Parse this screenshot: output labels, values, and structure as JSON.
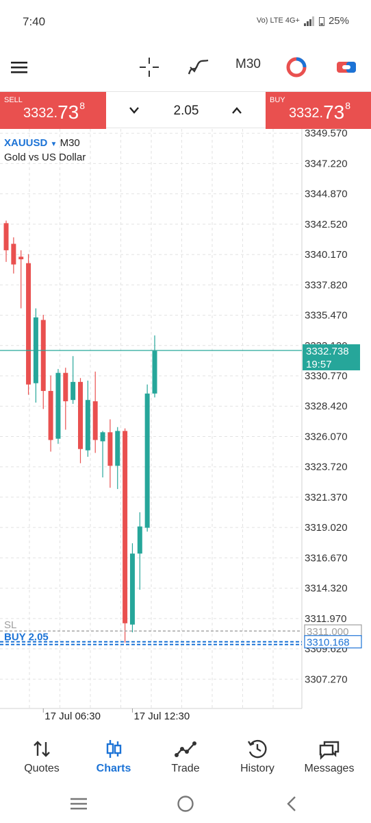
{
  "status_bar": {
    "time": "7:40",
    "network": "Vo) LTE 4G+",
    "battery": "25%"
  },
  "toolbar": {
    "menu_icon": "hamburger-icon",
    "crosshair_icon": "crosshair-icon",
    "indicators_icon": "indicators-icon",
    "timeframe": "M30",
    "objects_icon": "objects-icon",
    "trade_icon": "one-click-trading-icon"
  },
  "trade_bar": {
    "sell": {
      "label": "SELL",
      "price_small": "3332.",
      "price_big": "73",
      "price_sup": "8"
    },
    "buy": {
      "label": "BUY",
      "price_small": "3332.",
      "price_big": "73",
      "price_sup": "8"
    },
    "volume": "2.05",
    "colors": {
      "sell": "#e9504f",
      "buy": "#e9504f"
    }
  },
  "symbol": {
    "name": "XAUUSD",
    "timeframe": "M30",
    "description": "Gold vs US Dollar"
  },
  "chart_data": {
    "type": "candlestick",
    "symbol": "XAUUSD",
    "timeframe": "M30",
    "y_ticks": [
      "3349.570",
      "3347.220",
      "3344.870",
      "3342.520",
      "3340.170",
      "3337.820",
      "3335.470",
      "3333.120",
      "3330.770",
      "3328.420",
      "3326.070",
      "3323.720",
      "3321.370",
      "3319.020",
      "3316.670",
      "3314.320",
      "3311.970",
      "3309.620",
      "3307.270"
    ],
    "ylim": [
      3305.0,
      3349.9
    ],
    "x_labels": [
      {
        "label": "17 Jul 06:30",
        "index": 5
      },
      {
        "label": "17 Jul 12:30",
        "index": 17
      }
    ],
    "candles": [
      {
        "o": 3342.6,
        "h": 3342.8,
        "l": 3339.6,
        "c": 3340.5
      },
      {
        "o": 3341.0,
        "h": 3341.5,
        "l": 3338.7,
        "c": 3339.4
      },
      {
        "o": 3340.0,
        "h": 3340.5,
        "l": 3336.0,
        "c": 3339.8
      },
      {
        "o": 3339.5,
        "h": 3340.2,
        "l": 3329.3,
        "c": 3330.1
      },
      {
        "o": 3330.2,
        "h": 3336.0,
        "l": 3328.7,
        "c": 3335.3
      },
      {
        "o": 3335.1,
        "h": 3335.5,
        "l": 3328.2,
        "c": 3329.6
      },
      {
        "o": 3329.6,
        "h": 3330.8,
        "l": 3324.9,
        "c": 3325.8
      },
      {
        "o": 3325.9,
        "h": 3331.3,
        "l": 3325.5,
        "c": 3331.0
      },
      {
        "o": 3331.0,
        "h": 3331.4,
        "l": 3326.6,
        "c": 3328.8
      },
      {
        "o": 3328.9,
        "h": 3332.3,
        "l": 3328.6,
        "c": 3330.3
      },
      {
        "o": 3330.3,
        "h": 3330.6,
        "l": 3324.0,
        "c": 3325.1
      },
      {
        "o": 3325.0,
        "h": 3330.4,
        "l": 3324.5,
        "c": 3328.9
      },
      {
        "o": 3328.8,
        "h": 3331.1,
        "l": 3324.8,
        "c": 3325.8
      },
      {
        "o": 3325.7,
        "h": 3326.5,
        "l": 3322.9,
        "c": 3326.4
      },
      {
        "o": 3326.4,
        "h": 3327.4,
        "l": 3322.1,
        "c": 3323.8
      },
      {
        "o": 3323.8,
        "h": 3326.8,
        "l": 3322.0,
        "c": 3326.5
      },
      {
        "o": 3326.5,
        "h": 3326.7,
        "l": 3310.1,
        "c": 3311.6
      },
      {
        "o": 3311.5,
        "h": 3317.8,
        "l": 3310.9,
        "c": 3317.0
      },
      {
        "o": 3317.0,
        "h": 3320.2,
        "l": 3314.2,
        "c": 3319.1
      },
      {
        "o": 3319.0,
        "h": 3330.1,
        "l": 3318.7,
        "c": 3329.4
      },
      {
        "o": 3329.4,
        "h": 3333.9,
        "l": 3329.1,
        "c": 3332.7
      }
    ],
    "current_price": {
      "value": 3332.738,
      "label": "3332.738",
      "timer": "19:57"
    },
    "lines": [
      {
        "name": "SL",
        "label": "SL",
        "price": 3311.0,
        "price_label": "3311.000",
        "style": "dashed",
        "color": "#9e9e9e"
      },
      {
        "name": "BUY 2.05",
        "label": "BUY 2.05",
        "price": 3310.168,
        "price_label": "3310.168",
        "style": "dashed",
        "color": "#1c73d6"
      }
    ],
    "grid": true,
    "colors": {
      "up": "#26a69a",
      "down": "#e9504f",
      "price_line": "#26a69a"
    }
  },
  "bottom_nav": [
    {
      "label": "Quotes",
      "icon": "quotes-arrows-icon",
      "active": false
    },
    {
      "label": "Charts",
      "icon": "charts-candles-icon",
      "active": true
    },
    {
      "label": "Trade",
      "icon": "trade-line-icon",
      "active": false
    },
    {
      "label": "History",
      "icon": "history-clock-icon",
      "active": false
    },
    {
      "label": "Messages",
      "icon": "messages-icon",
      "active": false
    }
  ],
  "system_nav": {
    "recent": "recent-apps-icon",
    "home": "home-icon",
    "back": "back-icon"
  }
}
